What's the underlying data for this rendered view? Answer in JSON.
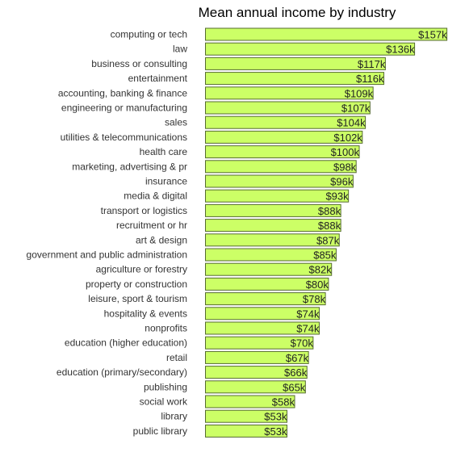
{
  "chart_data": {
    "type": "bar",
    "orientation": "horizontal",
    "title": "Mean annual income by industry",
    "categories": [
      "computing or tech",
      "law",
      "business or consulting",
      "entertainment",
      "accounting, banking & finance",
      "engineering or manufacturing",
      "sales",
      "utilities & telecommunications",
      "health care",
      "marketing, advertising & pr",
      "insurance",
      "media & digital",
      "transport or logistics",
      "recruitment or hr",
      "art & design",
      "government and public administration",
      "agriculture or forestry",
      "property or construction",
      "leisure, sport & tourism",
      "hospitality & events",
      "nonprofits",
      "education (higher education)",
      "retail",
      "education (primary/secondary)",
      "publishing",
      "social work",
      "library",
      "public library"
    ],
    "values": [
      157,
      136,
      117,
      116,
      109,
      107,
      104,
      102,
      100,
      98,
      96,
      93,
      88,
      88,
      87,
      85,
      82,
      80,
      78,
      74,
      74,
      70,
      67,
      66,
      65,
      58,
      53,
      53
    ],
    "value_labels": [
      "$157k",
      "$136k",
      "$117k",
      "$116k",
      "$109k",
      "$107k",
      "$104k",
      "$102k",
      "$100k",
      "$98k",
      "$96k",
      "$93k",
      "$88k",
      "$88k",
      "$87k",
      "$85k",
      "$82k",
      "$80k",
      "$78k",
      "$74k",
      "$74k",
      "$70k",
      "$67k",
      "$66k",
      "$65k",
      "$58k",
      "$53k",
      "$53k"
    ],
    "unit": "thousand USD",
    "bar_color": "#ccff66",
    "bar_edge_color": "#556b2f",
    "grid": false,
    "legend": "none"
  }
}
